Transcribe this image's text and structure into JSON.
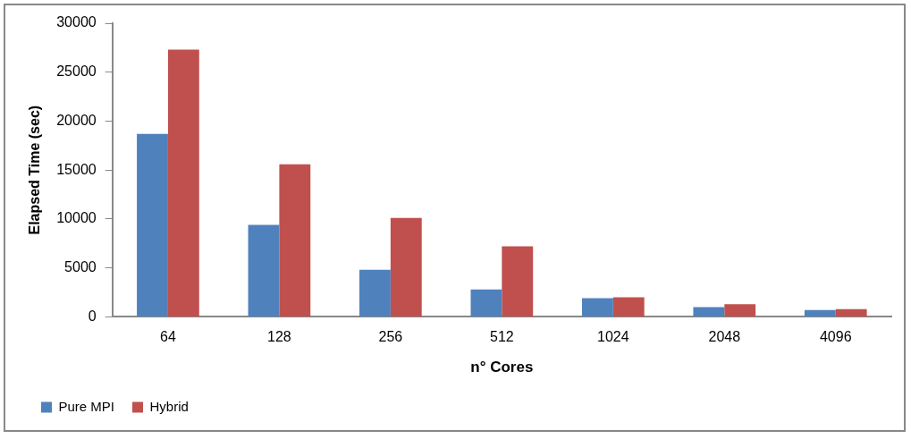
{
  "chart_data": {
    "type": "bar",
    "xlabel": "n° Cores",
    "ylabel": "Elapsed Time (sec)",
    "categories": [
      "64",
      "128",
      "256",
      "512",
      "1024",
      "2048",
      "4096"
    ],
    "series": [
      {
        "name": "Pure MPI",
        "color": "#4f81bd",
        "values": [
          18700,
          9400,
          4800,
          2800,
          1900,
          1000,
          700
        ]
      },
      {
        "name": "Hybrid",
        "color": "#c0504d",
        "values": [
          27300,
          15600,
          10100,
          7200,
          2000,
          1300,
          800
        ]
      }
    ],
    "ylim": [
      0,
      30000
    ],
    "yticks": [
      0,
      5000,
      10000,
      15000,
      20000,
      25000,
      30000
    ],
    "grid": false,
    "legend": "bottom left"
  }
}
